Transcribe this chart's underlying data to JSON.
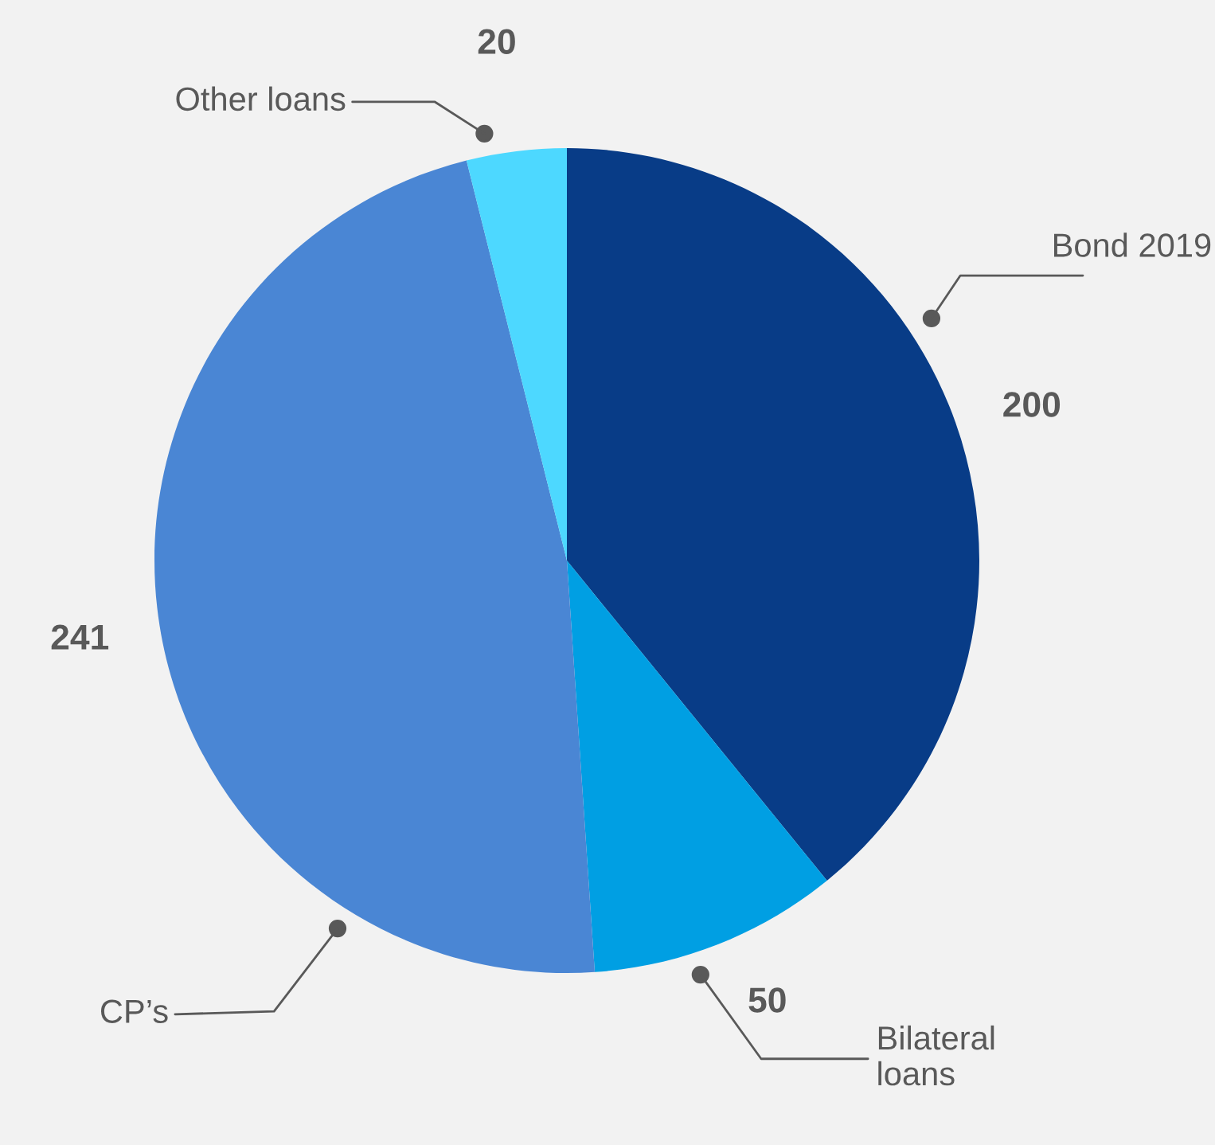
{
  "chart_data": {
    "type": "pie",
    "categories": [
      "Bond 2019",
      "Bilateral\nloans",
      "CP’s",
      "Other loans"
    ],
    "values": [
      200,
      50,
      241,
      20
    ],
    "colors": [
      "#083c87",
      "#009fe3",
      "#4a86d4",
      "#4dd8ff"
    ],
    "data_labels": true
  }
}
